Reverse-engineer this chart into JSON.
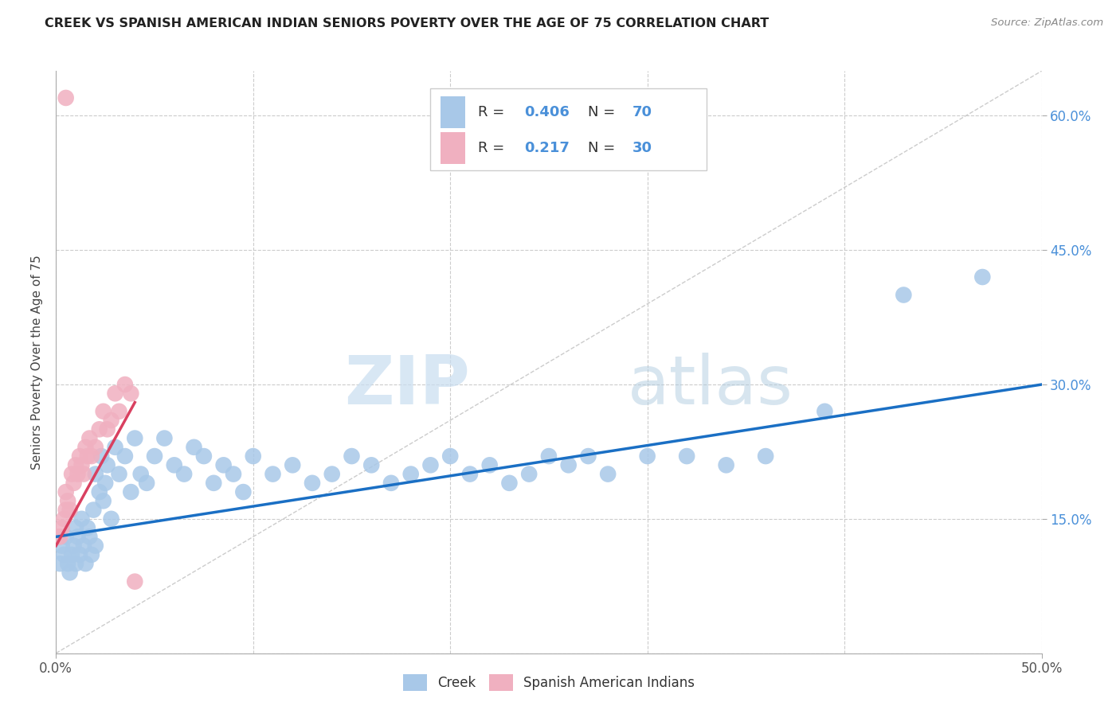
{
  "title": "CREEK VS SPANISH AMERICAN INDIAN SENIORS POVERTY OVER THE AGE OF 75 CORRELATION CHART",
  "source": "Source: ZipAtlas.com",
  "ylabel": "Seniors Poverty Over the Age of 75",
  "xlim": [
    0.0,
    0.5
  ],
  "ylim": [
    0.0,
    0.65
  ],
  "ytick_vals": [
    0.15,
    0.3,
    0.45,
    0.6
  ],
  "ytick_labels": [
    "15.0%",
    "30.0%",
    "45.0%",
    "60.0%"
  ],
  "xtick_vals": [
    0.0,
    0.5
  ],
  "xtick_labels": [
    "0.0%",
    "50.0%"
  ],
  "grid_yticks": [
    0.0,
    0.15,
    0.3,
    0.45,
    0.6
  ],
  "grid_xticks": [
    0.0,
    0.1,
    0.2,
    0.3,
    0.4,
    0.5
  ],
  "creek_color": "#a8c8e8",
  "spanish_color": "#f0b0c0",
  "creek_line_color": "#1a6fc4",
  "spanish_line_color": "#d94060",
  "grid_color": "#cccccc",
  "watermark_zip": "ZIP",
  "watermark_atlas": "atlas",
  "creek_scatter_x": [
    0.002,
    0.003,
    0.004,
    0.005,
    0.006,
    0.007,
    0.008,
    0.009,
    0.01,
    0.01,
    0.011,
    0.012,
    0.013,
    0.014,
    0.015,
    0.016,
    0.017,
    0.018,
    0.019,
    0.02,
    0.02,
    0.022,
    0.023,
    0.024,
    0.025,
    0.026,
    0.028,
    0.03,
    0.032,
    0.035,
    0.038,
    0.04,
    0.043,
    0.046,
    0.05,
    0.055,
    0.06,
    0.065,
    0.07,
    0.075,
    0.08,
    0.085,
    0.09,
    0.095,
    0.1,
    0.11,
    0.12,
    0.13,
    0.14,
    0.15,
    0.16,
    0.17,
    0.18,
    0.19,
    0.2,
    0.21,
    0.22,
    0.23,
    0.24,
    0.25,
    0.26,
    0.27,
    0.28,
    0.3,
    0.32,
    0.34,
    0.36,
    0.39,
    0.43,
    0.47
  ],
  "creek_scatter_y": [
    0.1,
    0.12,
    0.11,
    0.13,
    0.1,
    0.09,
    0.11,
    0.12,
    0.14,
    0.1,
    0.13,
    0.11,
    0.15,
    0.12,
    0.1,
    0.14,
    0.13,
    0.11,
    0.16,
    0.12,
    0.2,
    0.18,
    0.22,
    0.17,
    0.19,
    0.21,
    0.15,
    0.23,
    0.2,
    0.22,
    0.18,
    0.24,
    0.2,
    0.19,
    0.22,
    0.24,
    0.21,
    0.2,
    0.23,
    0.22,
    0.19,
    0.21,
    0.2,
    0.18,
    0.22,
    0.2,
    0.21,
    0.19,
    0.2,
    0.22,
    0.21,
    0.19,
    0.2,
    0.21,
    0.22,
    0.2,
    0.21,
    0.19,
    0.2,
    0.22,
    0.21,
    0.22,
    0.2,
    0.22,
    0.22,
    0.21,
    0.22,
    0.27,
    0.4,
    0.42
  ],
  "spanish_scatter_x": [
    0.001,
    0.002,
    0.003,
    0.004,
    0.005,
    0.005,
    0.006,
    0.007,
    0.008,
    0.009,
    0.01,
    0.011,
    0.012,
    0.013,
    0.014,
    0.015,
    0.016,
    0.017,
    0.018,
    0.02,
    0.022,
    0.024,
    0.026,
    0.028,
    0.03,
    0.032,
    0.035,
    0.038,
    0.04,
    0.005
  ],
  "spanish_scatter_y": [
    0.13,
    0.13,
    0.14,
    0.15,
    0.16,
    0.18,
    0.17,
    0.16,
    0.2,
    0.19,
    0.21,
    0.2,
    0.22,
    0.21,
    0.2,
    0.23,
    0.22,
    0.24,
    0.22,
    0.23,
    0.25,
    0.27,
    0.25,
    0.26,
    0.29,
    0.27,
    0.3,
    0.29,
    0.08,
    0.62
  ],
  "creek_line_x0": 0.0,
  "creek_line_y0": 0.13,
  "creek_line_x1": 0.5,
  "creek_line_y1": 0.3,
  "spanish_line_x0": 0.0,
  "spanish_line_y0": 0.12,
  "spanish_line_x1": 0.04,
  "spanish_line_y1": 0.28,
  "diag_line_x0": 0.0,
  "diag_line_y0": 0.0,
  "diag_line_x1": 0.5,
  "diag_line_y1": 0.65
}
